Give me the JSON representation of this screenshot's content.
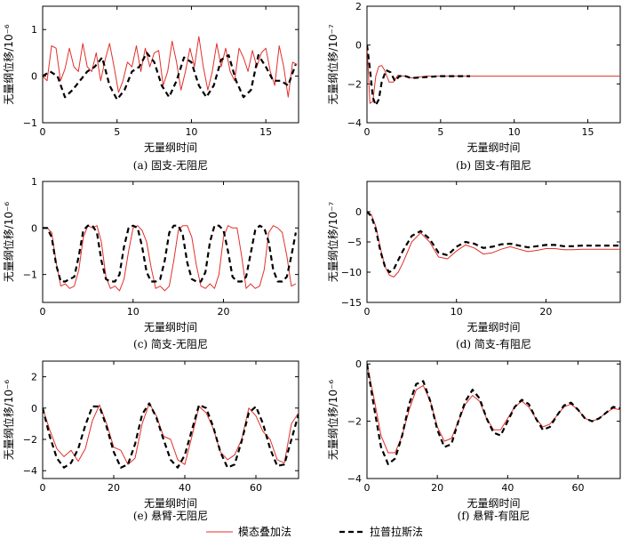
{
  "colors": {
    "modal": "#e0302a",
    "laplace": "#000000"
  },
  "legend": {
    "modal_label": "模态叠加法",
    "laplace_label": "拉普拉斯法"
  },
  "chart_data": [
    {
      "id": "a",
      "type": "line",
      "caption": "(a) 固支-无阻尼",
      "xlabel": "无量纲时间",
      "ylabel": "无量纲位移/10⁻⁶",
      "xlim": [
        0,
        17.2
      ],
      "ylim": [
        -1,
        1.5
      ],
      "xticks": [
        0,
        5,
        10,
        15
      ],
      "yticks": [
        -1,
        0,
        1
      ],
      "series": [
        {
          "name": "模态叠加法",
          "style": "modal",
          "x": [
            0,
            0.3,
            0.6,
            0.9,
            1.2,
            1.5,
            1.8,
            2.1,
            2.4,
            2.7,
            3.0,
            3.3,
            3.6,
            3.9,
            4.2,
            4.5,
            4.8,
            5.1,
            5.4,
            5.7,
            6.0,
            6.3,
            6.6,
            6.9,
            7.2,
            7.5,
            7.8,
            8.1,
            8.4,
            8.7,
            9.0,
            9.3,
            9.6,
            9.9,
            10.2,
            10.5,
            10.8,
            11.1,
            11.4,
            11.7,
            12.0,
            12.3,
            12.6,
            12.9,
            13.2,
            13.5,
            13.8,
            14.1,
            14.4,
            14.7,
            15.0,
            15.3,
            15.6,
            15.9,
            16.2,
            16.5,
            16.8,
            17.1
          ],
          "y": [
            0,
            -0.1,
            0.65,
            0.6,
            -0.1,
            0.15,
            0.6,
            0.2,
            0.1,
            0.7,
            0.2,
            0.1,
            0.5,
            -0.1,
            0.35,
            0.7,
            0.2,
            -0.35,
            -0.1,
            0.3,
            0.2,
            0.65,
            0.1,
            0.6,
            0.2,
            0.5,
            0.55,
            -0.2,
            0.1,
            0.75,
            0.3,
            -0.3,
            0.1,
            0.6,
            0.2,
            0.85,
            0.2,
            -0.3,
            0.1,
            0.7,
            0.2,
            0.6,
            0.1,
            -0.1,
            0.6,
            0.4,
            0.1,
            0.55,
            0.2,
            0.5,
            0.6,
            0.1,
            -0.2,
            0.65,
            0.2,
            -0.45,
            0.3,
            0.25
          ]
        },
        {
          "name": "拉普拉斯法",
          "style": "laplace",
          "x": [
            0,
            0.5,
            1.0,
            1.5,
            2.0,
            2.5,
            3.0,
            3.5,
            4.0,
            4.5,
            5.0,
            5.5,
            6.0,
            6.5,
            7.0,
            7.5,
            8.0,
            8.5,
            9.0,
            9.5,
            10.0,
            10.5,
            11.0,
            11.5,
            12.0,
            12.5,
            13.0,
            13.5,
            14.0,
            14.5,
            15.0,
            15.5,
            16.0,
            16.5,
            17.0
          ],
          "y": [
            0,
            0.1,
            0.0,
            -0.45,
            -0.3,
            -0.1,
            0.1,
            0.2,
            0.4,
            -0.2,
            -0.5,
            -0.3,
            0.1,
            0.2,
            0.5,
            0.3,
            -0.2,
            -0.45,
            -0.1,
            0.4,
            0.3,
            -0.2,
            -0.45,
            -0.2,
            0.35,
            0.45,
            -0.1,
            -0.45,
            -0.3,
            0.45,
            0.2,
            -0.1,
            -0.1,
            -0.2,
            0.25
          ]
        }
      ]
    },
    {
      "id": "b",
      "type": "line",
      "caption": "(b) 固支-有阻尼",
      "xlabel": "无量纲时间",
      "ylabel": "无量纲位移/10⁻⁷",
      "xlim": [
        0,
        17.2
      ],
      "ylim": [
        -4,
        2
      ],
      "xticks": [
        0,
        5,
        10,
        15
      ],
      "yticks": [
        -4,
        -2,
        0,
        2
      ],
      "series": [
        {
          "name": "模态叠加法",
          "style": "modal",
          "x": [
            0,
            0.2,
            0.4,
            0.6,
            0.8,
            1.0,
            1.2,
            1.5,
            1.8,
            2.1,
            2.5,
            3.0,
            4.0,
            6.0,
            17.2
          ],
          "y": [
            0,
            -3.0,
            -2.9,
            -1.6,
            -1.1,
            -1.05,
            -1.3,
            -1.9,
            -1.9,
            -1.55,
            -1.6,
            -1.7,
            -1.6,
            -1.6,
            -1.6
          ]
        },
        {
          "name": "拉普拉斯法",
          "style": "laplace",
          "x": [
            0,
            0.2,
            0.4,
            0.6,
            0.8,
            1.0,
            1.3,
            1.6,
            1.9,
            2.2,
            2.6,
            3.0,
            4.0,
            5.0,
            7.0
          ],
          "y": [
            0,
            -1.2,
            -2.7,
            -3.1,
            -2.8,
            -1.9,
            -1.3,
            -1.4,
            -1.85,
            -1.6,
            -1.6,
            -1.7,
            -1.65,
            -1.6,
            -1.6
          ]
        }
      ]
    },
    {
      "id": "c",
      "type": "line",
      "caption": "(c) 简支-无阻尼",
      "xlabel": "无量纲时间",
      "ylabel": "无量纲位移/10⁻⁶",
      "xlim": [
        0,
        28.3
      ],
      "ylim": [
        -1.6,
        1
      ],
      "xticks": [
        0,
        10,
        20
      ],
      "yticks": [
        -1,
        0,
        1
      ],
      "series": [
        {
          "name": "模态叠加法",
          "style": "modal",
          "x": [
            0,
            0.5,
            1.0,
            1.5,
            2.0,
            2.5,
            3.0,
            3.5,
            4.0,
            4.5,
            5.0,
            5.5,
            6.0,
            6.5,
            7.0,
            7.5,
            8.0,
            8.5,
            9.0,
            9.5,
            10.0,
            10.5,
            11.0,
            11.5,
            12.0,
            12.5,
            13.0,
            13.5,
            14.0,
            14.5,
            15.0,
            15.5,
            16.0,
            16.5,
            17.0,
            17.5,
            18.0,
            18.5,
            19.0,
            19.5,
            20.0,
            20.5,
            21.0,
            21.5,
            22.0,
            22.5,
            23.0,
            23.5,
            24.0,
            24.5,
            25.0,
            25.5,
            26.0,
            26.5,
            27.0,
            27.5,
            28.0
          ],
          "y": [
            0,
            0,
            -0.1,
            -0.75,
            -1.25,
            -1.2,
            -1.3,
            -1.25,
            -0.9,
            -0.2,
            0.05,
            0,
            0.05,
            -0.3,
            -1.05,
            -1.3,
            -1.25,
            -1.35,
            -1.1,
            -0.5,
            0,
            0.05,
            -0.05,
            -0.3,
            -0.85,
            -1.3,
            -1.25,
            -1.35,
            -1.25,
            -0.7,
            -0.05,
            0.05,
            0.05,
            -0.2,
            -0.8,
            -1.25,
            -1.3,
            -1.2,
            -1.3,
            -1.0,
            -0.2,
            0.05,
            0,
            0.0,
            -0.6,
            -1.3,
            -1.2,
            -1.3,
            -1.25,
            -0.9,
            -0.1,
            0.05,
            0,
            -0.1,
            -0.6,
            -1.25,
            -1.2
          ]
        },
        {
          "name": "拉普拉斯法",
          "style": "laplace",
          "x": [
            0,
            0.5,
            1.0,
            1.5,
            2.0,
            2.5,
            3.0,
            3.5,
            4.0,
            4.5,
            5.0,
            5.5,
            6.0,
            6.5,
            7.0,
            7.5,
            8.0,
            8.5,
            9.0,
            9.5,
            10.0,
            10.5,
            11.0,
            11.5,
            12.0,
            12.5,
            13.0,
            13.5,
            14.0,
            14.5,
            15.0,
            15.5,
            16.0,
            16.5,
            17.0,
            17.5,
            18.0,
            18.5,
            19.0,
            19.5,
            20.0,
            20.5,
            21.0,
            21.5,
            22.0,
            22.5,
            23.0,
            23.5,
            24.0,
            24.5,
            25.0,
            25.5,
            26.0,
            26.5,
            27.0,
            27.5,
            28.0
          ],
          "y": [
            0,
            0,
            -0.2,
            -0.8,
            -1.15,
            -1.15,
            -1.1,
            -1.05,
            -0.6,
            -0.05,
            0.05,
            0.05,
            -0.1,
            -0.7,
            -1.1,
            -1.15,
            -1.15,
            -1.0,
            -0.4,
            0,
            0.05,
            0,
            -0.4,
            -0.95,
            -1.15,
            -1.15,
            -1.1,
            -0.7,
            -0.1,
            0.05,
            0.05,
            -0.15,
            -0.75,
            -1.1,
            -1.15,
            -1.15,
            -0.95,
            -0.3,
            0.05,
            0.05,
            -0.05,
            -0.5,
            -1.05,
            -1.15,
            -1.15,
            -1.05,
            -0.55,
            -0.05,
            0.05,
            0,
            -0.3,
            -0.9,
            -1.15,
            -1.15,
            -1.05,
            -0.6,
            -0.1
          ]
        }
      ]
    },
    {
      "id": "d",
      "type": "line",
      "caption": "(d) 简支-有阻尼",
      "xlabel": "无量纲时间",
      "ylabel": "无量纲位移/10⁻⁷",
      "xlim": [
        0,
        28.3
      ],
      "ylim": [
        -15,
        5
      ],
      "xticks": [
        0,
        10,
        20
      ],
      "yticks": [
        -15,
        -10,
        -5,
        0
      ],
      "series": [
        {
          "name": "模态叠加法",
          "style": "modal",
          "x": [
            0,
            0.5,
            1.0,
            1.5,
            2.0,
            2.5,
            3.0,
            3.5,
            4.0,
            5.0,
            6.0,
            7.0,
            8.0,
            9.0,
            10.0,
            11.0,
            12.0,
            13.0,
            14.0,
            15.0,
            16.0,
            17.0,
            18.0,
            19.0,
            20.0,
            21.0,
            22.0,
            23.0,
            24.0,
            25.0,
            26.0,
            27.0,
            28.3
          ],
          "y": [
            0,
            -0.5,
            -2.5,
            -6,
            -9,
            -10.5,
            -10.8,
            -10,
            -8.5,
            -5,
            -3.5,
            -5,
            -7.5,
            -7.8,
            -6.5,
            -5.5,
            -6,
            -7,
            -6.8,
            -6.2,
            -5.8,
            -6.2,
            -6.6,
            -6.4,
            -6.1,
            -6.1,
            -6.3,
            -6.3,
            -6.2,
            -6.2,
            -6.2,
            -6.2,
            -6.2
          ]
        },
        {
          "name": "拉普拉斯法",
          "style": "laplace",
          "x": [
            0,
            0.5,
            1.0,
            1.5,
            2.0,
            2.5,
            3.0,
            3.5,
            4.0,
            5.0,
            6.0,
            7.0,
            8.0,
            9.0,
            10.0,
            11.0,
            12.0,
            13.0,
            14.0,
            15.0,
            16.0,
            17.0,
            18.0,
            19.0,
            20.0,
            21.0,
            22.0,
            23.0,
            24.0,
            25.0,
            26.0,
            27.0,
            28.3
          ],
          "y": [
            0,
            -0.8,
            -3,
            -6.5,
            -9,
            -10,
            -9.5,
            -8,
            -6.5,
            -4,
            -3.2,
            -4.5,
            -6.8,
            -7.2,
            -5.8,
            -5,
            -5.3,
            -6,
            -5.8,
            -5.4,
            -5.3,
            -5.6,
            -5.9,
            -5.7,
            -5.5,
            -5.5,
            -5.7,
            -5.7,
            -5.6,
            -5.6,
            -5.6,
            -5.6,
            -5.6
          ]
        }
      ]
    },
    {
      "id": "e",
      "type": "line",
      "caption": "(e) 悬臂-无阻尼",
      "xlabel": "无量纲时间",
      "ylabel": "无量纲位移/10⁻⁶",
      "xlim": [
        0,
        72
      ],
      "ylim": [
        -4.5,
        3
      ],
      "xticks": [
        0,
        20,
        40,
        60
      ],
      "yticks": [
        -4,
        -2,
        0,
        2
      ],
      "series": [
        {
          "name": "模态叠加法",
          "style": "modal",
          "x": [
            0,
            2,
            4,
            6,
            8,
            10,
            12,
            14,
            16,
            18,
            20,
            22,
            24,
            26,
            28,
            30,
            32,
            34,
            36,
            38,
            40,
            42,
            44,
            46,
            48,
            50,
            52,
            54,
            56,
            58,
            60,
            62,
            64,
            66,
            68,
            70,
            72
          ],
          "y": [
            0,
            -1.4,
            -2.6,
            -3.1,
            -2.7,
            -3.4,
            -2.6,
            -0.8,
            0.2,
            -1.0,
            -2.5,
            -2.7,
            -3.6,
            -3.2,
            -1.0,
            0.3,
            -0.5,
            -1.8,
            -2.0,
            -3.3,
            -3.6,
            -1.8,
            0.1,
            -0.3,
            -1.3,
            -2.8,
            -3.3,
            -3.0,
            -2.0,
            0.0,
            -0.5,
            -1.5,
            -2.0,
            -3.3,
            -3.5,
            -1.0,
            -0.3
          ]
        },
        {
          "name": "拉普拉斯法",
          "style": "laplace",
          "x": [
            0,
            2,
            4,
            6,
            8,
            10,
            12,
            14,
            16,
            18,
            20,
            22,
            24,
            26,
            28,
            30,
            32,
            34,
            36,
            38,
            40,
            42,
            44,
            46,
            48,
            50,
            52,
            54,
            56,
            58,
            60,
            62,
            64,
            66,
            68,
            70,
            72
          ],
          "y": [
            0,
            -1.8,
            -3.2,
            -3.8,
            -3.5,
            -2.6,
            -1.1,
            0.1,
            0.1,
            -1.2,
            -2.8,
            -3.8,
            -3.6,
            -2.3,
            -0.4,
            0.3,
            -0.6,
            -2.0,
            -3.3,
            -3.8,
            -3.0,
            -1.4,
            0.2,
            0.0,
            -1.2,
            -2.8,
            -3.8,
            -3.6,
            -2.1,
            -0.3,
            0.1,
            -1.0,
            -2.6,
            -3.7,
            -3.6,
            -2.0,
            -0.4
          ]
        }
      ]
    },
    {
      "id": "f",
      "type": "line",
      "caption": "(f) 悬臂-有阻尼",
      "xlabel": "无量纲时间",
      "ylabel": "无量纲位移/10⁻⁶",
      "xlim": [
        0,
        72
      ],
      "ylim": [
        -4,
        0.1
      ],
      "xticks": [
        0,
        20,
        40,
        60
      ],
      "yticks": [
        -4,
        -2,
        0
      ],
      "series": [
        {
          "name": "模态叠加法",
          "style": "modal",
          "x": [
            0,
            2,
            4,
            6,
            8,
            10,
            12,
            14,
            16,
            18,
            20,
            22,
            24,
            26,
            28,
            30,
            32,
            34,
            36,
            38,
            40,
            42,
            44,
            46,
            48,
            50,
            52,
            54,
            56,
            58,
            60,
            62,
            64,
            66,
            68,
            70,
            72
          ],
          "y": [
            0,
            -1.2,
            -2.5,
            -3.1,
            -3.1,
            -2.5,
            -1.6,
            -0.9,
            -0.75,
            -1.3,
            -2.2,
            -2.7,
            -2.6,
            -2.0,
            -1.4,
            -1.1,
            -1.3,
            -1.9,
            -2.3,
            -2.3,
            -1.9,
            -1.5,
            -1.3,
            -1.5,
            -1.9,
            -2.2,
            -2.1,
            -1.8,
            -1.5,
            -1.4,
            -1.6,
            -1.9,
            -2.0,
            -1.9,
            -1.7,
            -1.55,
            -1.6
          ]
        },
        {
          "name": "拉普拉斯法",
          "style": "laplace",
          "x": [
            0,
            2,
            4,
            6,
            8,
            10,
            12,
            14,
            16,
            18,
            20,
            22,
            24,
            26,
            28,
            30,
            32,
            34,
            36,
            38,
            40,
            42,
            44,
            46,
            48,
            50,
            52,
            54,
            56,
            58,
            60,
            62,
            64,
            66,
            68,
            70,
            72
          ],
          "y": [
            0,
            -1.5,
            -2.9,
            -3.5,
            -3.3,
            -2.5,
            -1.4,
            -0.7,
            -0.6,
            -1.3,
            -2.3,
            -2.9,
            -2.8,
            -2.0,
            -1.3,
            -0.9,
            -1.2,
            -1.9,
            -2.4,
            -2.5,
            -2.0,
            -1.5,
            -1.25,
            -1.4,
            -1.9,
            -2.3,
            -2.2,
            -1.8,
            -1.45,
            -1.35,
            -1.6,
            -1.9,
            -2.0,
            -1.9,
            -1.7,
            -1.5,
            -1.55
          ]
        }
      ]
    }
  ]
}
